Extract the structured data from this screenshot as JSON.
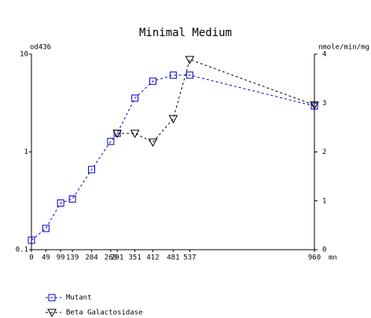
{
  "chart_data": {
    "type": "line",
    "title": "Minimal Medium",
    "y_label": "od436",
    "y2_label": "nmole/min/mg",
    "x_label": "mn",
    "x": [
      0,
      49,
      99,
      139,
      204,
      269,
      291,
      351,
      412,
      481,
      537,
      960
    ],
    "xlim": [
      0,
      960
    ],
    "xticks": [
      0,
      49,
      99,
      139,
      204,
      269,
      291,
      351,
      412,
      481,
      537,
      960
    ],
    "ylim": [
      0.1,
      10
    ],
    "yticks": [
      0.1,
      1,
      10
    ],
    "y_log": true,
    "y2lim": [
      0,
      4
    ],
    "y2ticks": [
      0,
      1,
      2,
      3,
      4
    ],
    "series": [
      {
        "name": "Mutant",
        "color": "#0000cc",
        "marker": "square",
        "values": [
          0.125,
          0.165,
          0.3,
          0.33,
          0.66,
          1.28,
          1.55,
          3.55,
          5.3,
          6.1,
          6.1,
          2.95
        ]
      },
      {
        "name": "Beta Galactosidase",
        "color": "#000000",
        "marker": "triangle",
        "axis": "y2",
        "values": [
          null,
          null,
          null,
          null,
          null,
          null,
          2.38,
          2.38,
          2.2,
          2.68,
          3.89,
          2.96
        ]
      }
    ]
  }
}
